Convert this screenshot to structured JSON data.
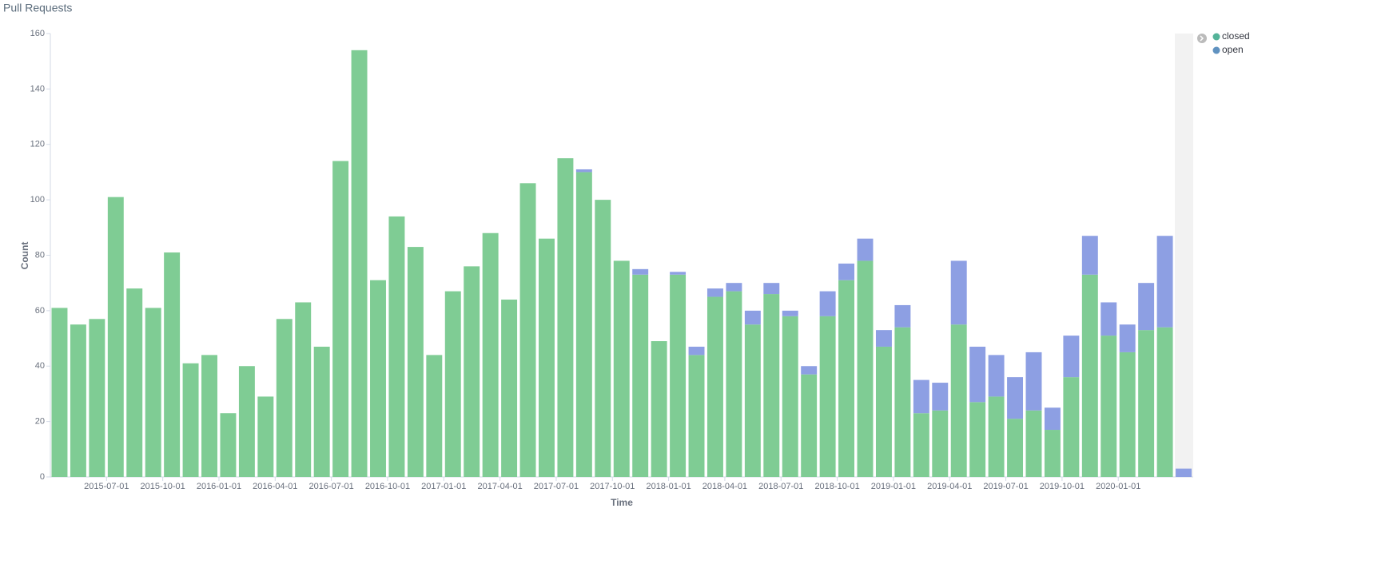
{
  "chart_data": {
    "type": "stacked-bar",
    "title": "Pull Requests",
    "x_label": "Time",
    "y_label": "Count",
    "categories": [
      null,
      null,
      null,
      "2015-07-01",
      null,
      null,
      "2015-10-01",
      null,
      null,
      "2016-01-01",
      null,
      null,
      "2016-04-01",
      null,
      null,
      "2016-07-01",
      null,
      null,
      "2016-10-01",
      null,
      null,
      "2017-01-01",
      null,
      null,
      "2017-04-01",
      null,
      null,
      "2017-07-01",
      null,
      null,
      "2017-10-01",
      null,
      null,
      "2018-01-01",
      null,
      null,
      "2018-04-01",
      null,
      null,
      "2018-07-01",
      null,
      null,
      "2018-10-01",
      null,
      null,
      "2019-01-01",
      null,
      null,
      "2019-04-01",
      null,
      null,
      "2019-07-01",
      null,
      null,
      "2019-10-01",
      null,
      null,
      "2020-01-01",
      null,
      null,
      null
    ],
    "series": [
      {
        "name": "closed",
        "color": "#7fcc94",
        "legend_color": "#54b399",
        "values": [
          61,
          55,
          57,
          101,
          68,
          61,
          81,
          41,
          44,
          23,
          40,
          29,
          57,
          63,
          47,
          114,
          154,
          71,
          94,
          83,
          44,
          67,
          76,
          88,
          64,
          106,
          86,
          115,
          110,
          100,
          78,
          73,
          49,
          73,
          44,
          65,
          67,
          55,
          66,
          58,
          37,
          58,
          71,
          78,
          47,
          54,
          23,
          24,
          55,
          27,
          29,
          21,
          24,
          17,
          36,
          73,
          51,
          45,
          53,
          54,
          0
        ]
      },
      {
        "name": "open",
        "color": "#8d9fe3",
        "legend_color": "#6092c0",
        "values": [
          0,
          0,
          0,
          0,
          0,
          0,
          0,
          0,
          0,
          0,
          0,
          0,
          0,
          0,
          0,
          0,
          0,
          0,
          0,
          0,
          0,
          0,
          0,
          0,
          0,
          0,
          0,
          0,
          1,
          0,
          0,
          2,
          0,
          1,
          3,
          3,
          3,
          5,
          4,
          2,
          3,
          9,
          6,
          8,
          6,
          8,
          12,
          10,
          23,
          20,
          15,
          15,
          21,
          8,
          15,
          14,
          12,
          10,
          17,
          33,
          3
        ]
      }
    ],
    "ylim": [
      0,
      160
    ],
    "yticks": [
      0,
      20,
      40,
      60,
      80,
      100,
      120,
      140,
      160
    ],
    "grid": false,
    "legend": "top-right"
  }
}
